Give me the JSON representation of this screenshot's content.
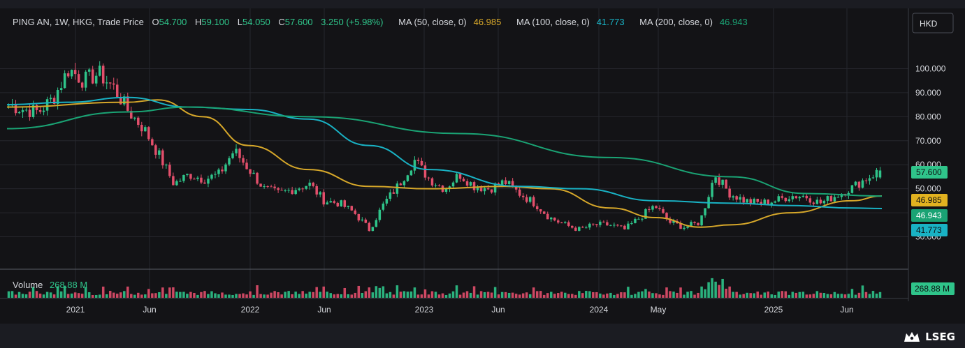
{
  "header": {
    "symbol": "PING AN, 1W, HKG, Trade Price",
    "o_label": "O",
    "o_value": "54.700",
    "h_label": "H",
    "h_value": "59.100",
    "l_label": "L",
    "l_value": "54.050",
    "c_label": "C",
    "c_value": "57.600",
    "change": "3.250 (+5.98%)",
    "ma50_label": "MA (50, close, 0)",
    "ma50_value": "46.985",
    "ma100_label": "MA (100, close, 0)",
    "ma100_value": "41.773",
    "ma200_label": "MA (200, close, 0)",
    "ma200_value": "46.943"
  },
  "currency_button": "HKD",
  "volume": {
    "label": "Volume",
    "value": "268.88 M",
    "badge": "268.88 M"
  },
  "price_badges": {
    "last": "57.600",
    "ma50": "46.985",
    "ma200": "46.943",
    "ma100": "41.773"
  },
  "brand": "LSEG",
  "colors": {
    "up": "#2fc48a",
    "down": "#e24f6b",
    "ma50": "#d6a72a",
    "ma100": "#19b2c4",
    "ma200": "#1aa374",
    "grid": "#26272d",
    "text": "#d6d8dd"
  },
  "chart_data": {
    "type": "candlestick",
    "title": "PING AN, 1W, HKG, Trade Price",
    "x_ticks": [
      "2021",
      "Jun",
      "2022",
      "Jun",
      "2023",
      "Jun",
      "2024",
      "May",
      "2025",
      "Jun"
    ],
    "y_ticks": [
      "30.000",
      "40.000",
      "50.000",
      "60.000",
      "70.000",
      "80.000",
      "90.000",
      "100.000"
    ],
    "ylim": [
      20,
      110
    ],
    "grid": true,
    "last_bar": {
      "open": 54.7,
      "high": 59.1,
      "low": 54.05,
      "close": 57.6,
      "change": 3.25,
      "change_pct": 5.98
    },
    "price_series": [
      [
        "2020-10",
        85
      ],
      [
        "2020-11",
        83
      ],
      [
        "2020-12",
        82
      ],
      [
        "2021-01",
        88
      ],
      [
        "2021-02",
        100
      ],
      [
        "2021-03",
        95
      ],
      [
        "2021-04",
        98
      ],
      [
        "2021-05",
        92
      ],
      [
        "2021-06",
        82
      ],
      [
        "2021-07",
        75
      ],
      [
        "2021-08",
        64
      ],
      [
        "2021-09",
        52
      ],
      [
        "2021-10",
        56
      ],
      [
        "2021-11",
        54
      ],
      [
        "2021-12",
        56
      ],
      [
        "2022-01",
        66
      ],
      [
        "2022-02",
        58
      ],
      [
        "2022-03",
        50
      ],
      [
        "2022-04",
        48
      ],
      [
        "2022-05",
        50
      ],
      [
        "2022-06",
        52
      ],
      [
        "2022-07",
        45
      ],
      [
        "2022-08",
        44
      ],
      [
        "2022-09",
        40
      ],
      [
        "2022-10",
        33
      ],
      [
        "2022-11",
        44
      ],
      [
        "2022-12",
        52
      ],
      [
        "2023-01",
        62
      ],
      [
        "2023-02",
        54
      ],
      [
        "2023-03",
        50
      ],
      [
        "2023-04",
        56
      ],
      [
        "2023-05",
        51
      ],
      [
        "2023-06",
        50
      ],
      [
        "2023-07",
        53
      ],
      [
        "2023-08",
        48
      ],
      [
        "2023-09",
        44
      ],
      [
        "2023-10",
        38
      ],
      [
        "2023-11",
        35
      ],
      [
        "2023-12",
        33
      ],
      [
        "2024-01",
        35
      ],
      [
        "2024-02",
        35
      ],
      [
        "2024-03",
        33
      ],
      [
        "2024-04",
        38
      ],
      [
        "2024-05",
        43
      ],
      [
        "2024-06",
        36
      ],
      [
        "2024-07",
        34
      ],
      [
        "2024-08",
        36
      ],
      [
        "2024-09",
        56
      ],
      [
        "2024-10",
        48
      ],
      [
        "2024-11",
        45
      ],
      [
        "2024-12",
        44
      ],
      [
        "2025-01",
        45
      ],
      [
        "2025-02",
        47
      ],
      [
        "2025-03",
        47
      ],
      [
        "2025-04",
        44
      ],
      [
        "2025-05",
        47
      ],
      [
        "2025-06",
        50
      ],
      [
        "2025-07",
        54
      ],
      [
        "2025-08",
        57.6
      ]
    ],
    "ma_series": [
      {
        "name": "MA (50, close, 0)",
        "last": 46.985,
        "values": [
          [
            0,
            84
          ],
          [
            8,
            86
          ],
          [
            10,
            87
          ],
          [
            13,
            80
          ],
          [
            16,
            68
          ],
          [
            20,
            58
          ],
          [
            24,
            51
          ],
          [
            28,
            50
          ],
          [
            33,
            51
          ],
          [
            36,
            50
          ],
          [
            40,
            42
          ],
          [
            43,
            38
          ],
          [
            46,
            34
          ],
          [
            48,
            35
          ],
          [
            52,
            40
          ],
          [
            56,
            45
          ],
          [
            58,
            46.985
          ]
        ]
      },
      {
        "name": "MA (100, close, 0)",
        "last": 41.773,
        "values": [
          [
            0,
            85
          ],
          [
            4,
            86
          ],
          [
            8,
            88
          ],
          [
            12,
            84
          ],
          [
            16,
            83
          ],
          [
            20,
            79
          ],
          [
            24,
            68
          ],
          [
            28,
            58
          ],
          [
            34,
            51
          ],
          [
            38,
            50
          ],
          [
            43,
            45
          ],
          [
            48,
            44
          ],
          [
            52,
            43
          ],
          [
            56,
            42
          ],
          [
            58,
            41.773
          ]
        ]
      },
      {
        "name": "MA (200, close, 0)",
        "last": 46.943,
        "values": [
          [
            0,
            75
          ],
          [
            8,
            82
          ],
          [
            12,
            84
          ],
          [
            20,
            80
          ],
          [
            30,
            73
          ],
          [
            40,
            63
          ],
          [
            48,
            55
          ],
          [
            53,
            48
          ],
          [
            58,
            46.943
          ]
        ]
      }
    ],
    "volume_last": "268.88 M"
  }
}
